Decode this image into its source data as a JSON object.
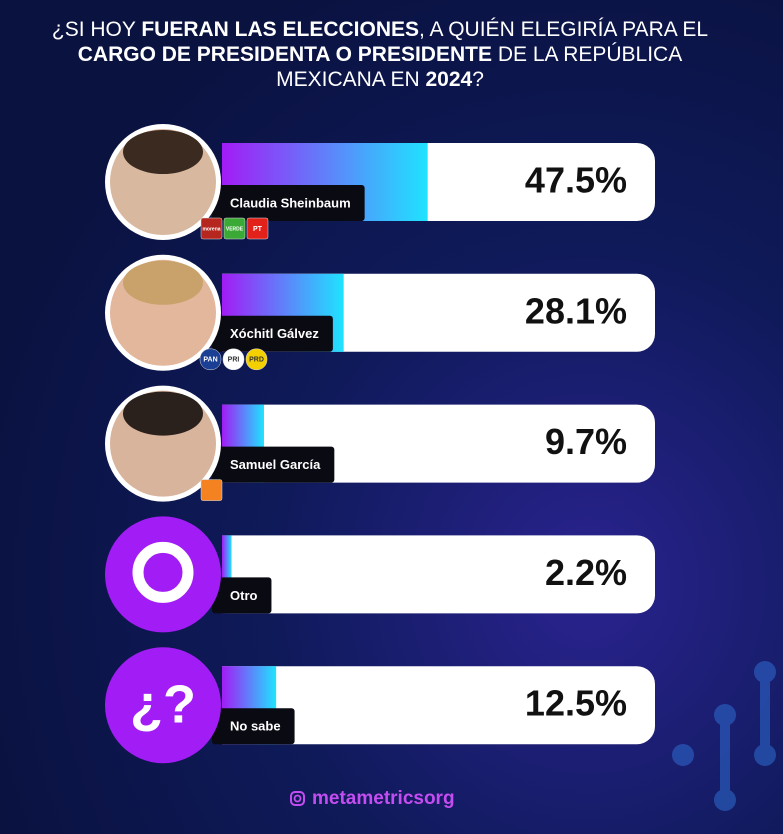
{
  "chart_data": {
    "type": "bar",
    "title": [
      [
        {
          "text": "¿SI HOY ",
          "bold": false
        },
        {
          "text": "FUERAN LAS ELECCIONES",
          "bold": true
        },
        {
          "text": ", A QUIÉN ELEGIRÍA PARA EL",
          "bold": false
        }
      ],
      [
        {
          "text": "CARGO DE PRESIDENTA O PRESIDENTE",
          "bold": true
        },
        {
          "text": " DE LA REPÚBLICA",
          "bold": false
        }
      ],
      [
        {
          "text": "MEXICANA EN ",
          "bold": false
        },
        {
          "text": "2024",
          "bold": true
        },
        {
          "text": "?",
          "bold": false
        }
      ]
    ],
    "categories": [
      "Claudia Sheinbaum",
      "Xóchitl Gálvez",
      "Samuel García",
      "Otro",
      "No sabe"
    ],
    "values": [
      47.5,
      28.1,
      9.7,
      2.2,
      12.5
    ],
    "value_labels": [
      "47.5%",
      "28.1%",
      "9.7%",
      "2.2%",
      "12.5%"
    ],
    "xlim": [
      0,
      100
    ],
    "colors": [
      "#a21cf5",
      "#1fe3ff"
    ],
    "parties": [
      [
        {
          "label": "morena",
          "color": "#b5261e"
        },
        {
          "label": "VERDE",
          "color": "#3aa935"
        },
        {
          "label": "PT",
          "color": "#e3211b"
        }
      ],
      [
        {
          "label": "PAN",
          "color": "#1b3f94"
        },
        {
          "label": "PRI",
          "color": "#ffffff"
        },
        {
          "label": "PRD",
          "color": "#f5d000"
        }
      ],
      [
        {
          "color": "#f58220"
        }
      ],
      [],
      []
    ],
    "unknown_icon": "¿?",
    "footer": "metametricsorg"
  }
}
